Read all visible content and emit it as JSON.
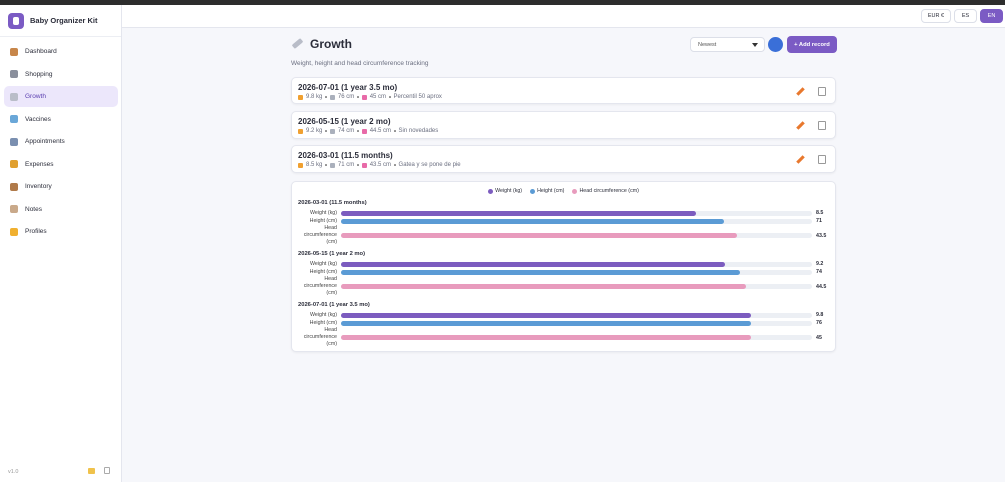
{
  "sidebar": {
    "app_name": "Baby Organizer Kit",
    "nav": [
      "Dashboard",
      "Shopping",
      "Growth",
      "Vaccines",
      "Appointments",
      "Expenses",
      "Inventory",
      "Notes",
      "Profiles"
    ],
    "active": 2,
    "version": "v1.0"
  },
  "header": {
    "currency": "EUR €",
    "languages": [
      "ES",
      "EN"
    ],
    "active_language": 1
  },
  "page": {
    "title": "Growth",
    "subtitle": "Weight, height and head circumference tracking",
    "sort": "Newest",
    "add_button": "+ Add record"
  },
  "records": [
    {
      "title": "2026-07-01 (1 year 3.5 mo)",
      "weight": "9.8 kg",
      "height": "76 cm",
      "head": "45 cm",
      "note": "Percentil 50 aprox"
    },
    {
      "title": "2026-05-15 (1 year 2 mo)",
      "weight": "9.2 kg",
      "height": "74 cm",
      "head": "44.5 cm",
      "note": "Sin novedades"
    },
    {
      "title": "2026-03-01 (11.5 months)",
      "weight": "8.5 kg",
      "height": "71 cm",
      "head": "43.5 cm",
      "note": "Gatea y se pone de pie"
    }
  ],
  "chart_data": {
    "type": "bar",
    "orientation": "horizontal",
    "categories": [
      "2026-03-01 (11.5 months)",
      "2026-05-15 (1 year 2 mo)",
      "2026-07-01 (1 year 3.5 mo)"
    ],
    "series": [
      {
        "name": "Weight (kg)",
        "color": "#7c5cbf",
        "values": [
          8.5,
          9.2,
          9.8
        ],
        "xlim": [
          0,
          11.27
        ]
      },
      {
        "name": "Height (cm)",
        "color": "#5b9bd5",
        "values": [
          71,
          74,
          76
        ],
        "xlim": [
          0,
          87.4
        ]
      },
      {
        "name": "Head circumference (cm)",
        "color": "#e89bbd",
        "values": [
          43.5,
          44.5,
          45
        ],
        "xlim": [
          0,
          51.7
        ]
      }
    ]
  }
}
